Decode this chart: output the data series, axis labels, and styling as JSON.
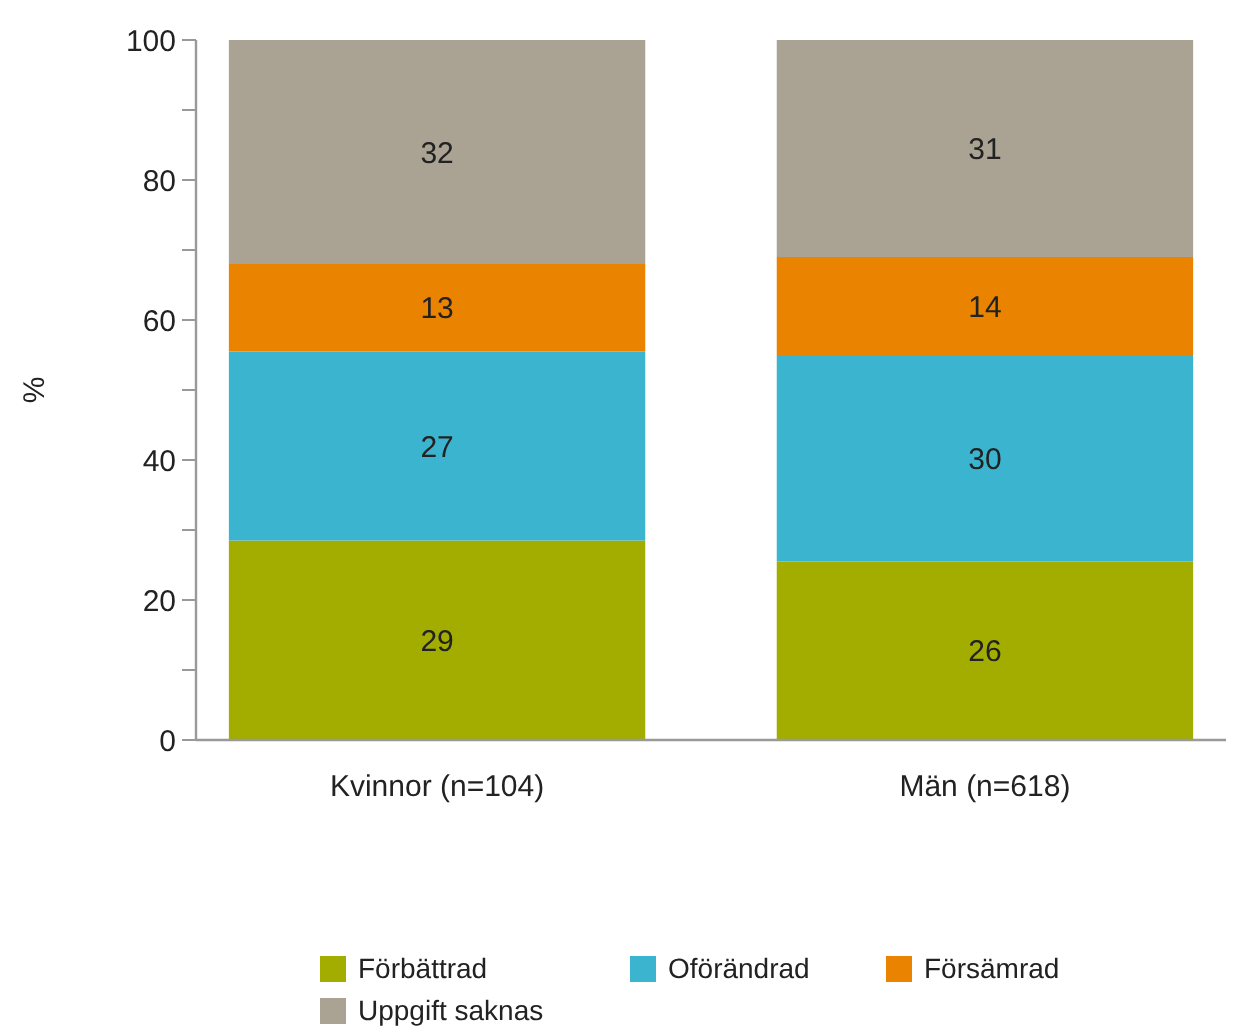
{
  "chart_data": {
    "type": "bar",
    "stacked": true,
    "ylabel": "%",
    "categories": [
      "Kvinnor (n=104)",
      "Män (n=618)"
    ],
    "series": [
      {
        "name": "Förbättrad",
        "color": "#a3ad00",
        "values": [
          28.5,
          25.5
        ],
        "value_labels": [
          "29",
          "26"
        ]
      },
      {
        "name": "Oförändrad",
        "color": "#3bb4d0",
        "values": [
          27,
          29.5
        ],
        "value_labels": [
          "27",
          "30"
        ]
      },
      {
        "name": "Försämrad",
        "color": "#e98300",
        "values": [
          12.5,
          14
        ],
        "value_labels": [
          "13",
          "14"
        ]
      },
      {
        "name": "Uppgift saknas",
        "color": "#aaa292",
        "values": [
          32,
          31
        ],
        "value_labels": [
          "32",
          "31"
        ]
      }
    ],
    "ylim": [
      0,
      100
    ],
    "yticks": [
      0,
      {
        "value": 10,
        "label": null
      },
      20,
      {
        "value": 30,
        "label": null
      },
      40,
      {
        "value": 50,
        "label": null
      },
      60,
      {
        "value": 70,
        "label": null
      },
      80,
      {
        "value": 90,
        "label": null
      },
      100
    ],
    "legend": "bottom",
    "grid": false
  }
}
